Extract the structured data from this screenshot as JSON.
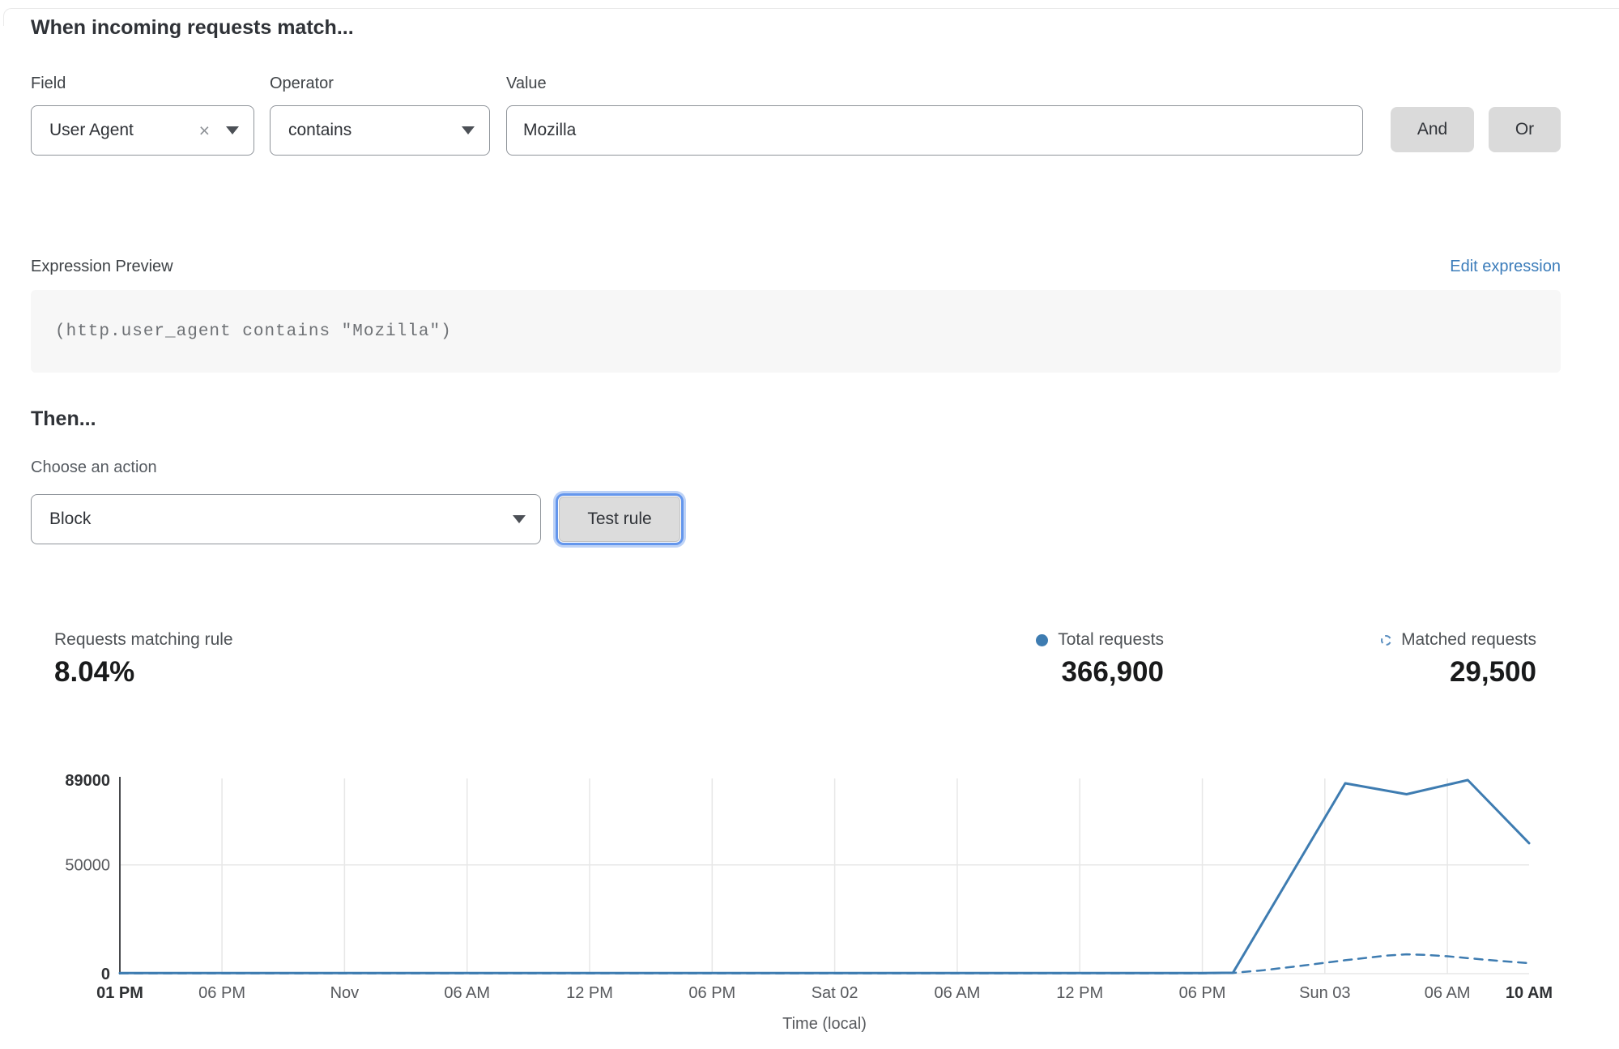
{
  "match_section": {
    "heading": "When incoming requests match...",
    "field": {
      "label": "Field",
      "value": "User Agent"
    },
    "operator": {
      "label": "Operator",
      "value": "contains"
    },
    "value": {
      "label": "Value",
      "value": "Mozilla"
    },
    "and_label": "And",
    "or_label": "Or"
  },
  "expression": {
    "label": "Expression Preview",
    "edit_link": "Edit expression",
    "code": "(http.user_agent contains \"Mozilla\")"
  },
  "action_section": {
    "heading": "Then...",
    "choose_label": "Choose an action",
    "action_value": "Block",
    "test_button": "Test rule"
  },
  "stats": {
    "matching": {
      "label": "Requests matching rule",
      "value": "8.04%"
    },
    "total": {
      "label": "Total requests",
      "value": "366,900"
    },
    "matched": {
      "label": "Matched requests",
      "value": "29,500"
    }
  },
  "icons": {
    "clear": "×"
  },
  "colors": {
    "accent_blue": "#3e7cb1",
    "link_blue": "#3b7cba",
    "focus_ring": "#6496ec",
    "grid": "#e7e7e7",
    "axis": "#47494c"
  },
  "chart_data": {
    "type": "line",
    "title": "",
    "xlabel": "Time (local)",
    "ylabel": "",
    "ylim": [
      0,
      89000
    ],
    "x_span_hours": 69,
    "grid": true,
    "legend_position": "top-right",
    "yticks": [
      {
        "value": 0,
        "label": "0",
        "bold": true
      },
      {
        "value": 50000,
        "label": "50000",
        "bold": false
      },
      {
        "value": 89000,
        "label": "89000",
        "bold": true
      }
    ],
    "xticks": [
      {
        "hour": 0,
        "label": "01 PM",
        "bold": true
      },
      {
        "hour": 5,
        "label": "06 PM",
        "bold": false
      },
      {
        "hour": 11,
        "label": "Nov",
        "bold": false
      },
      {
        "hour": 17,
        "label": "06 AM",
        "bold": false
      },
      {
        "hour": 23,
        "label": "12 PM",
        "bold": false
      },
      {
        "hour": 29,
        "label": "06 PM",
        "bold": false
      },
      {
        "hour": 35,
        "label": "Sat 02",
        "bold": false
      },
      {
        "hour": 41,
        "label": "06 AM",
        "bold": false
      },
      {
        "hour": 47,
        "label": "12 PM",
        "bold": false
      },
      {
        "hour": 53,
        "label": "06 PM",
        "bold": false
      },
      {
        "hour": 59,
        "label": "Sun 03",
        "bold": false
      },
      {
        "hour": 65,
        "label": "06 AM",
        "bold": false
      },
      {
        "hour": 69,
        "label": "10 AM",
        "bold": true
      }
    ],
    "series": [
      {
        "name": "Total requests",
        "style": "solid",
        "color": "#3e7cb1",
        "points": [
          [
            0,
            300
          ],
          [
            5,
            300
          ],
          [
            11,
            300
          ],
          [
            17,
            300
          ],
          [
            23,
            300
          ],
          [
            29,
            300
          ],
          [
            35,
            300
          ],
          [
            41,
            300
          ],
          [
            47,
            300
          ],
          [
            53,
            300
          ],
          [
            54.5,
            400
          ],
          [
            60,
            87500
          ],
          [
            63,
            82500
          ],
          [
            66,
            89000
          ],
          [
            69,
            60000
          ]
        ]
      },
      {
        "name": "Matched requests",
        "style": "dashed",
        "color": "#3e7cb1",
        "points": [
          [
            0,
            150
          ],
          [
            5,
            150
          ],
          [
            11,
            150
          ],
          [
            17,
            150
          ],
          [
            23,
            150
          ],
          [
            29,
            150
          ],
          [
            35,
            150
          ],
          [
            41,
            150
          ],
          [
            47,
            150
          ],
          [
            53,
            150
          ],
          [
            54.5,
            350
          ],
          [
            56,
            1600
          ],
          [
            58,
            3800
          ],
          [
            60,
            6200
          ],
          [
            62,
            8300
          ],
          [
            63,
            8900
          ],
          [
            64,
            8600
          ],
          [
            65,
            8000
          ],
          [
            67,
            6300
          ],
          [
            69,
            4800
          ]
        ]
      }
    ]
  }
}
